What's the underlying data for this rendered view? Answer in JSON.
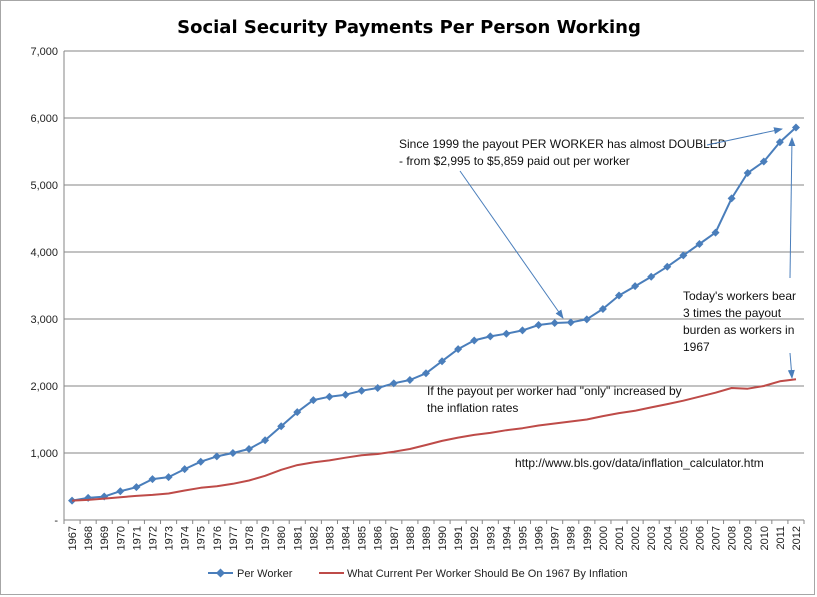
{
  "chart_data": {
    "type": "line",
    "title": "Social Security Payments Per Person Working",
    "xlabel": "",
    "ylabel": "",
    "ylim": [
      0,
      7000
    ],
    "yticks": [
      0,
      1000,
      2000,
      3000,
      4000,
      5000,
      6000,
      7000
    ],
    "ytick_labels": [
      "-",
      "1,000",
      "2,000",
      "3,000",
      "4,000",
      "5,000",
      "6,000",
      "7,000"
    ],
    "grid": true,
    "legend_position": "bottom",
    "categories": [
      "1967",
      "1968",
      "1969",
      "1970",
      "1971",
      "1972",
      "1973",
      "1974",
      "1975",
      "1976",
      "1977",
      "1978",
      "1979",
      "1980",
      "1981",
      "1982",
      "1983",
      "1984",
      "1985",
      "1986",
      "1987",
      "1988",
      "1989",
      "1990",
      "1991",
      "1992",
      "1993",
      "1994",
      "1995",
      "1996",
      "1997",
      "1998",
      "1999",
      "2000",
      "2001",
      "2002",
      "2003",
      "2004",
      "2005",
      "2006",
      "2007",
      "2008",
      "2009",
      "2010",
      "2011",
      "2012"
    ],
    "series": [
      {
        "name": "Per Worker",
        "color": "#4a7ebb",
        "marker": "diamond",
        "values": [
          290,
          330,
          350,
          430,
          490,
          610,
          640,
          760,
          870,
          950,
          1000,
          1060,
          1190,
          1400,
          1610,
          1790,
          1840,
          1870,
          1930,
          1970,
          2040,
          2090,
          2190,
          2370,
          2550,
          2680,
          2740,
          2780,
          2830,
          2910,
          2940,
          2950,
          2995,
          3150,
          3350,
          3490,
          3630,
          3780,
          3950,
          4120,
          4290,
          4800,
          5180,
          5350,
          5640,
          5859
        ]
      },
      {
        "name": "What Current Per Worker Should Be On 1967 By Inflation",
        "color": "#be4b48",
        "marker": "none",
        "values": [
          290,
          300,
          320,
          340,
          360,
          375,
          395,
          440,
          480,
          505,
          540,
          590,
          660,
          750,
          820,
          860,
          890,
          930,
          965,
          985,
          1020,
          1060,
          1120,
          1180,
          1230,
          1270,
          1300,
          1340,
          1370,
          1410,
          1440,
          1470,
          1500,
          1550,
          1595,
          1630,
          1680,
          1730,
          1780,
          1840,
          1900,
          1970,
          1960,
          2000,
          2070,
          2100
        ]
      }
    ],
    "annotations": {
      "doubled_line1": "Since 1999 the payout PER WORKER has almost DOUBLED",
      "doubled_line2": "- from $2,995 to  $5,859 paid out per worker",
      "burden_line1": "Today's workers bear",
      "burden_line2": "3 times the payout",
      "burden_line3": "burden as workers in",
      "burden_line4": "1967",
      "inflation_line1": "If the payout per worker had \"only\" increased by",
      "inflation_line2": "the  inflation rates",
      "source_url": "http://www.bls.gov/data/inflation_calculator.htm"
    }
  }
}
